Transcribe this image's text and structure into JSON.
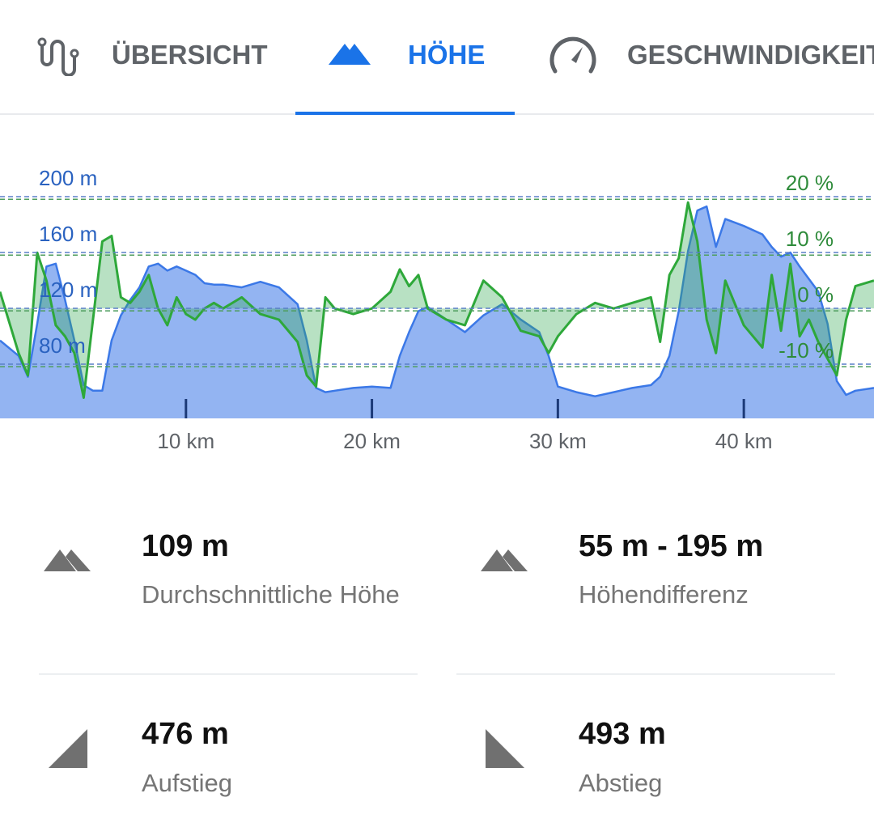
{
  "tabs": [
    "ÜBERSICHT",
    "HÖHE",
    "GESCHWINDIGKEIT"
  ],
  "chart_data": {
    "type": "area",
    "x": [
      0,
      1,
      1.5,
      2,
      2.5,
      3,
      3.5,
      4,
      4.5,
      5,
      5.5,
      6,
      6.5,
      7,
      7.5,
      8,
      8.5,
      9,
      9.5,
      10,
      10.5,
      11,
      11.5,
      12,
      13,
      14,
      15,
      16,
      16.5,
      17,
      17.5,
      18,
      19,
      20,
      21,
      21.5,
      22,
      22.5,
      23,
      24,
      25,
      26,
      27,
      28,
      29,
      29.5,
      30,
      31,
      32,
      33,
      34,
      35,
      35.5,
      36,
      36.5,
      37,
      37.5,
      38,
      38.5,
      39,
      40,
      41,
      41.5,
      42,
      42.5,
      43,
      43.5,
      44,
      44.5,
      45,
      45.5,
      46,
      47
    ],
    "series": [
      {
        "color": "#3b78e7",
        "values": [
          97,
          86,
          71,
          109,
          150,
          152,
          126,
          97,
          65,
          61,
          61,
          97,
          115,
          126,
          135,
          150,
          152,
          147,
          150,
          147,
          144,
          138,
          137,
          137,
          135,
          139,
          135,
          123,
          97,
          63,
          60,
          61,
          63,
          64,
          63,
          86,
          103,
          118,
          121,
          112,
          103,
          115,
          123,
          112,
          103,
          86,
          64,
          60,
          57,
          60,
          63,
          65,
          71,
          86,
          118,
          161,
          190,
          193,
          164,
          184,
          179,
          173,
          164,
          157,
          160,
          150,
          141,
          132,
          109,
          68,
          58,
          61,
          63
        ]
      },
      {
        "color": "#2ea83a",
        "axis": "y2",
        "values": [
          3,
          -8,
          -12,
          10,
          5,
          -3,
          -5,
          -8,
          -16,
          -2,
          12,
          13,
          2,
          1,
          3,
          6,
          0,
          -3,
          2,
          -1,
          -2,
          0,
          1,
          0,
          2,
          -1,
          -2,
          -6,
          -12,
          -14,
          2,
          0,
          -1,
          0,
          3,
          7,
          4,
          6,
          0,
          -2,
          -3,
          5,
          2,
          -4,
          -5,
          -8,
          -5,
          -1,
          1,
          0,
          1,
          2,
          -6,
          6,
          9,
          19,
          12,
          -2,
          -8,
          5,
          -3,
          -7,
          6,
          -4,
          8,
          -5,
          -2,
          -6,
          -9,
          -12,
          -2,
          4,
          5
        ]
      }
    ],
    "xlim": [
      0,
      47
    ],
    "xticks": [
      {
        "value": 10,
        "label": "10 km"
      },
      {
        "value": 20,
        "label": "20 km"
      },
      {
        "value": 30,
        "label": "30 km"
      },
      {
        "value": 40,
        "label": "40 km"
      }
    ],
    "ylim": [
      41.2,
      239.4
    ],
    "yticks": [
      {
        "value": 80,
        "label": "80 m"
      },
      {
        "value": 120,
        "label": "120 m"
      },
      {
        "value": 160,
        "label": "160 m"
      },
      {
        "value": 200,
        "label": "200 m"
      }
    ],
    "y2lim": [
      -19.7,
      29.9
    ],
    "y2ticks": [
      {
        "value": -10,
        "label": "-10 %"
      },
      {
        "value": 0,
        "label": "0 %"
      },
      {
        "value": 10,
        "label": "10 %"
      },
      {
        "value": 20,
        "label": "20 %"
      }
    ],
    "grid": true
  },
  "stats": [
    {
      "value": "109 m",
      "label": "Durchschnittliche Höhe"
    },
    {
      "value": "55 m - 195 m",
      "label": "Höhendifferenz"
    },
    {
      "value": "476 m",
      "label": "Aufstieg"
    },
    {
      "value": "493 m",
      "label": "Abstieg"
    }
  ]
}
